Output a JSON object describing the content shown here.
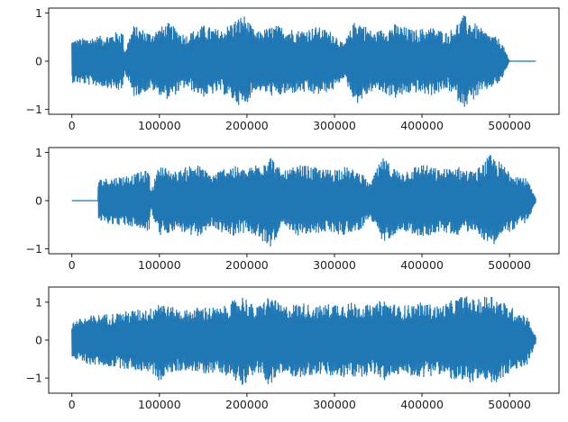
{
  "figure": {
    "background": "#ffffff",
    "line_color": "#1f77b4"
  },
  "chart_data": [
    {
      "type": "line",
      "title": "",
      "xlabel": "",
      "ylabel": "",
      "grid": false,
      "legend": "none",
      "xlim": [
        -26500,
        556500
      ],
      "ylim": [
        -1.1,
        1.1
      ],
      "xticks": [
        0,
        100000,
        200000,
        300000,
        400000,
        500000
      ],
      "yticks": [
        -1,
        0,
        1
      ],
      "xtick_labels": [
        "0",
        "100000",
        "200000",
        "300000",
        "400000",
        "500000"
      ],
      "ytick_labels": [
        "−1",
        "0",
        "1"
      ],
      "series": [
        {
          "color": "#1f77b4",
          "x_start": 0,
          "x_end": 530000,
          "silent_segments": [
            [
              500000,
              530000
            ]
          ],
          "envelope_points": [
            [
              0,
              0.45
            ],
            [
              20000,
              0.5
            ],
            [
              40000,
              0.55
            ],
            [
              58000,
              0.65
            ],
            [
              60000,
              0.2
            ],
            [
              70000,
              0.75
            ],
            [
              90000,
              0.6
            ],
            [
              110000,
              0.8
            ],
            [
              130000,
              0.55
            ],
            [
              150000,
              0.75
            ],
            [
              170000,
              0.65
            ],
            [
              196000,
              0.98
            ],
            [
              210000,
              0.6
            ],
            [
              232000,
              0.75
            ],
            [
              260000,
              0.65
            ],
            [
              280000,
              0.72
            ],
            [
              300000,
              0.6
            ],
            [
              310000,
              0.35
            ],
            [
              325000,
              0.9
            ],
            [
              345000,
              0.6
            ],
            [
              370000,
              0.78
            ],
            [
              390000,
              0.65
            ],
            [
              410000,
              0.72
            ],
            [
              430000,
              0.6
            ],
            [
              448000,
              0.96
            ],
            [
              470000,
              0.65
            ],
            [
              490000,
              0.45
            ],
            [
              500000,
              0.0
            ]
          ]
        }
      ]
    },
    {
      "type": "line",
      "title": "",
      "xlabel": "",
      "ylabel": "",
      "grid": false,
      "legend": "none",
      "xlim": [
        -26500,
        556500
      ],
      "ylim": [
        -1.1,
        1.1
      ],
      "xticks": [
        0,
        100000,
        200000,
        300000,
        400000,
        500000
      ],
      "yticks": [
        -1,
        0,
        1
      ],
      "xtick_labels": [
        "0",
        "100000",
        "200000",
        "300000",
        "400000",
        "500000"
      ],
      "ytick_labels": [
        "−1",
        "0",
        "1"
      ],
      "series": [
        {
          "color": "#1f77b4",
          "x_start": 0,
          "x_end": 530000,
          "silent_segments": [
            [
              0,
              30000
            ]
          ],
          "envelope_points": [
            [
              30000,
              0.45
            ],
            [
              50000,
              0.5
            ],
            [
              70000,
              0.55
            ],
            [
              88000,
              0.65
            ],
            [
              90000,
              0.2
            ],
            [
              100000,
              0.75
            ],
            [
              120000,
              0.6
            ],
            [
              140000,
              0.8
            ],
            [
              160000,
              0.55
            ],
            [
              180000,
              0.75
            ],
            [
              200000,
              0.65
            ],
            [
              226000,
              0.98
            ],
            [
              240000,
              0.6
            ],
            [
              262000,
              0.75
            ],
            [
              290000,
              0.65
            ],
            [
              310000,
              0.72
            ],
            [
              330000,
              0.6
            ],
            [
              340000,
              0.35
            ],
            [
              355000,
              0.9
            ],
            [
              375000,
              0.6
            ],
            [
              400000,
              0.78
            ],
            [
              420000,
              0.65
            ],
            [
              440000,
              0.72
            ],
            [
              460000,
              0.6
            ],
            [
              478000,
              0.96
            ],
            [
              500000,
              0.65
            ],
            [
              520000,
              0.45
            ],
            [
              530000,
              0.05
            ]
          ]
        }
      ]
    },
    {
      "type": "line",
      "title": "",
      "xlabel": "",
      "ylabel": "",
      "grid": false,
      "legend": "none",
      "xlim": [
        -26500,
        556500
      ],
      "ylim": [
        -1.4,
        1.4
      ],
      "xticks": [
        0,
        100000,
        200000,
        300000,
        400000,
        500000
      ],
      "yticks": [
        -1,
        0,
        1
      ],
      "xtick_labels": [
        "0",
        "100000",
        "200000",
        "300000",
        "400000",
        "500000"
      ],
      "ytick_labels": [
        "−1",
        "0",
        "1"
      ],
      "series": [
        {
          "color": "#1f77b4",
          "x_start": 0,
          "x_end": 530000,
          "silent_segments": [],
          "envelope_points": [
            [
              0,
              0.5
            ],
            [
              20000,
              0.65
            ],
            [
              40000,
              0.7
            ],
            [
              58000,
              0.75
            ],
            [
              70000,
              0.8
            ],
            [
              90000,
              0.85
            ],
            [
              100000,
              1.1
            ],
            [
              110000,
              0.9
            ],
            [
              130000,
              0.8
            ],
            [
              150000,
              0.9
            ],
            [
              170000,
              0.85
            ],
            [
              196000,
              1.2
            ],
            [
              210000,
              0.85
            ],
            [
              226000,
              1.2
            ],
            [
              240000,
              0.9
            ],
            [
              262000,
              1.0
            ],
            [
              280000,
              0.9
            ],
            [
              300000,
              1.0
            ],
            [
              325000,
              1.0
            ],
            [
              345000,
              0.9
            ],
            [
              355000,
              1.1
            ],
            [
              375000,
              0.9
            ],
            [
              400000,
              1.0
            ],
            [
              420000,
              0.9
            ],
            [
              448000,
              1.2
            ],
            [
              462000,
              1.05
            ],
            [
              478000,
              1.25
            ],
            [
              500000,
              0.9
            ],
            [
              520000,
              0.65
            ],
            [
              530000,
              0.1
            ]
          ]
        }
      ]
    }
  ]
}
